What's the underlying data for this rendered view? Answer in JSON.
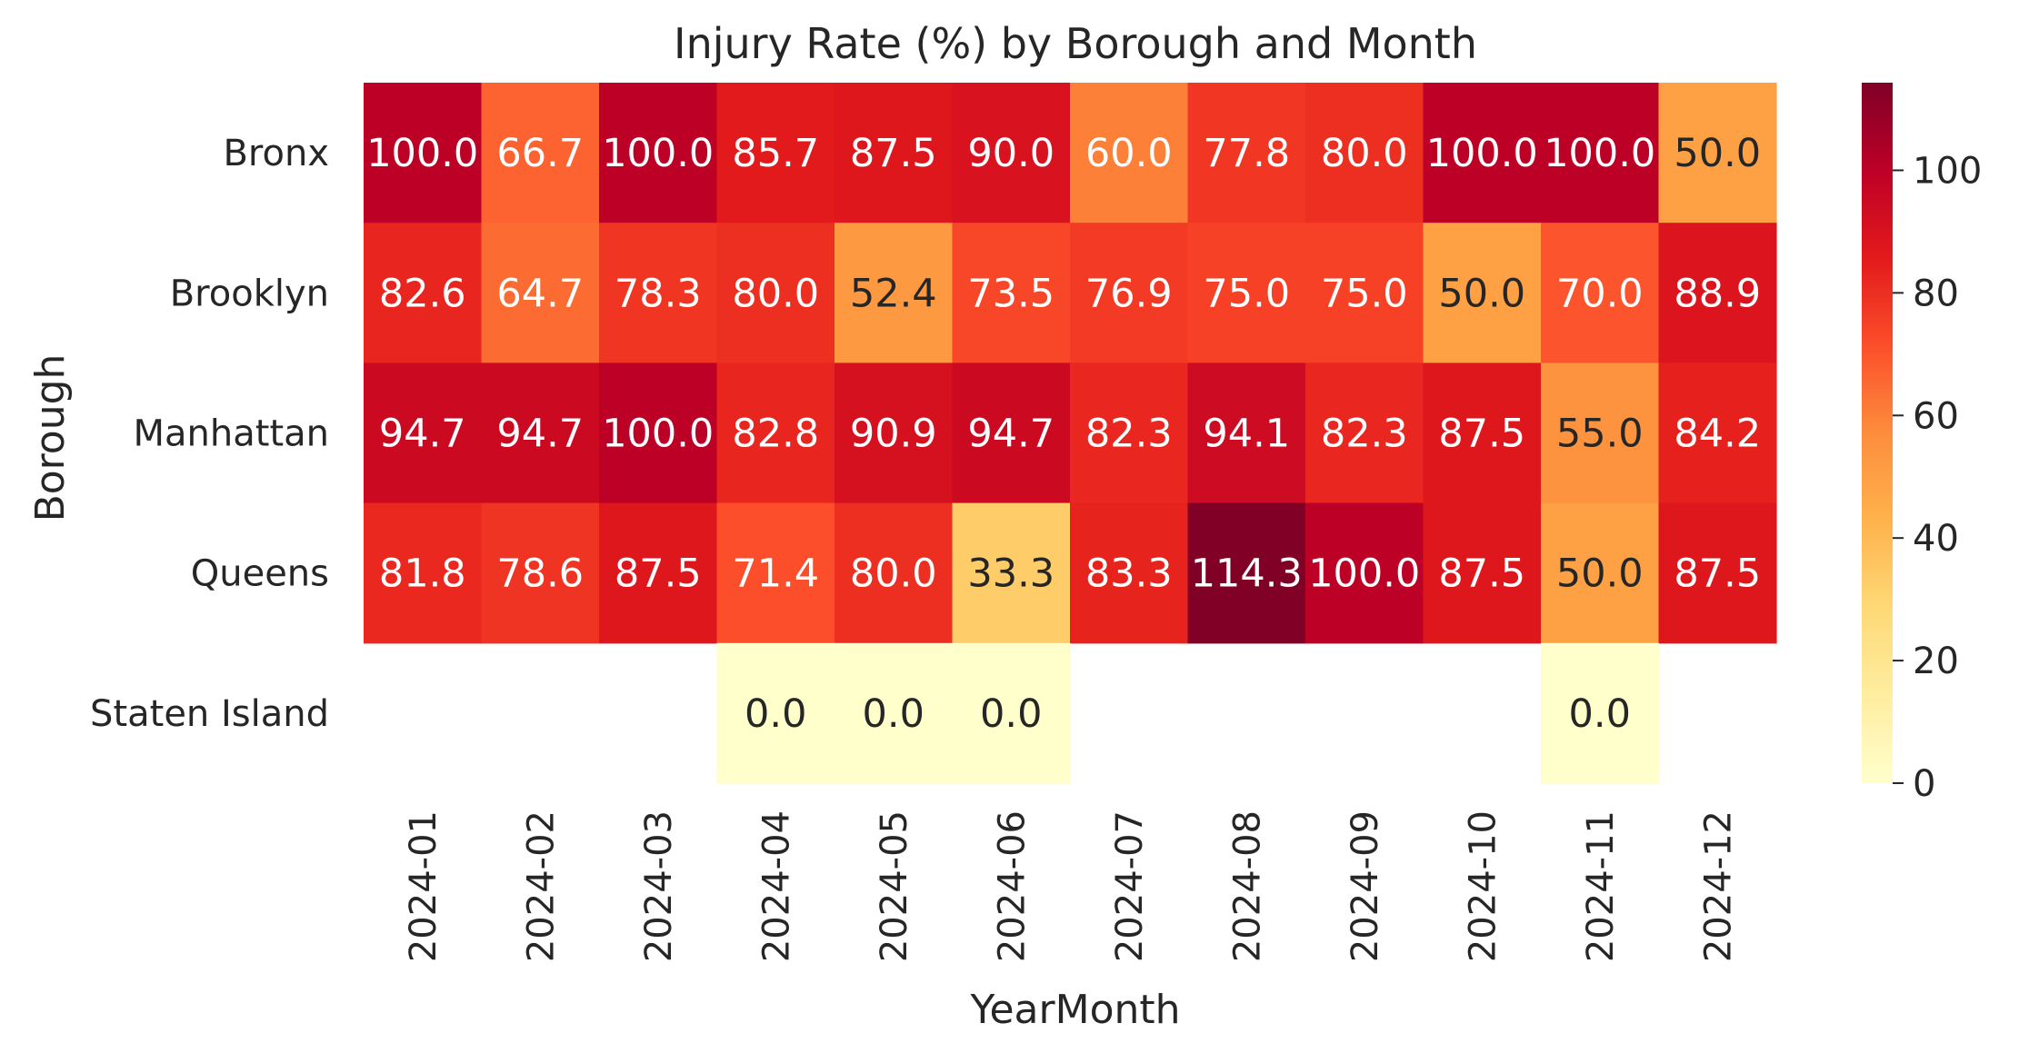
{
  "chart_data": {
    "type": "heatmap",
    "title": "Injury Rate (%) by Borough and Month",
    "xlabel": "YearMonth",
    "ylabel": "Borough",
    "x": [
      "2024-01",
      "2024-02",
      "2024-03",
      "2024-04",
      "2024-05",
      "2024-06",
      "2024-07",
      "2024-08",
      "2024-09",
      "2024-10",
      "2024-11",
      "2024-12"
    ],
    "y": [
      "Bronx",
      "Brooklyn",
      "Manhattan",
      "Queens",
      "Staten Island"
    ],
    "values": [
      [
        100.0,
        66.7,
        100.0,
        85.7,
        87.5,
        90.0,
        60.0,
        77.8,
        80.0,
        100.0,
        100.0,
        50.0
      ],
      [
        82.6,
        64.7,
        78.3,
        80.0,
        52.4,
        73.5,
        76.9,
        75.0,
        75.0,
        50.0,
        70.0,
        88.9
      ],
      [
        94.7,
        94.7,
        100.0,
        82.8,
        90.9,
        94.7,
        82.3,
        94.1,
        82.3,
        87.5,
        55.0,
        84.2
      ],
      [
        81.8,
        78.6,
        87.5,
        71.4,
        80.0,
        33.3,
        83.3,
        114.3,
        100.0,
        87.5,
        50.0,
        87.5
      ],
      [
        null,
        null,
        null,
        0.0,
        0.0,
        0.0,
        null,
        null,
        null,
        null,
        0.0,
        null
      ]
    ],
    "colorbar": {
      "min": 0,
      "max": 114.3,
      "ticks": [
        0,
        20,
        40,
        60,
        80,
        100
      ],
      "colormap": "YlOrRd"
    },
    "grid": false,
    "legend": "colorbar-right"
  }
}
